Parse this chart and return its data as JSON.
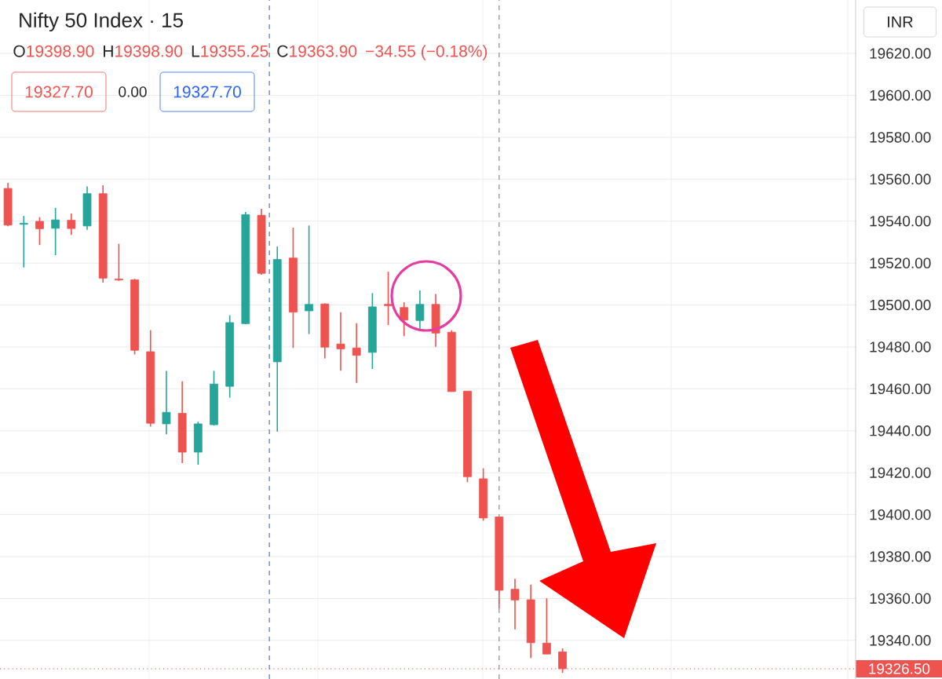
{
  "chart_data": {
    "type": "candlestick",
    "title": "Nifty 50 Index · 15",
    "categories": [
      null,
      null,
      null,
      null,
      null,
      null,
      null,
      null,
      null,
      null,
      null,
      null,
      null,
      null,
      null,
      null,
      null,
      null,
      null,
      null,
      null,
      null,
      null,
      null,
      null,
      null,
      null,
      null,
      null,
      null,
      null,
      null,
      null,
      null,
      null,
      null,
      null,
      null,
      null,
      null,
      null,
      null,
      null,
      null,
      null,
      null,
      null,
      null,
      null,
      null,
      null,
      null,
      null,
      null
    ],
    "ohlc": [
      [
        19555.6,
        19558.2,
        19537.6,
        19538.1
      ],
      [
        19538.5,
        19542.5,
        19517.9,
        19539.0
      ],
      [
        19539.9,
        19541.9,
        19528.6,
        19536.4
      ],
      [
        19536.6,
        19546.3,
        19523.8,
        19540.6
      ],
      [
        19540.4,
        19543.6,
        19533.4,
        19536.5
      ],
      [
        19537.7,
        19556.6,
        19535.9,
        19553.1
      ],
      [
        19553.1,
        19557.1,
        19510.7,
        19512.8
      ],
      [
        19512.4,
        19529.2,
        19511.5,
        19511.9
      ],
      [
        19512.0,
        19512.5,
        19476.4,
        19478.4
      ],
      [
        19477.7,
        19488.0,
        19442.0,
        19443.6
      ],
      [
        19443.3,
        19468.6,
        19438.3,
        19448.8
      ],
      [
        19448.3,
        19463.6,
        19424.6,
        19429.8
      ],
      [
        19429.8,
        19444.3,
        19423.8,
        19443.3
      ],
      [
        19442.9,
        19468.6,
        19442.5,
        19462.3
      ],
      [
        19461.2,
        19495.1,
        19455.8,
        19491.6
      ],
      [
        19491.1,
        19544.4,
        19490.8,
        19543.1
      ],
      [
        19542.8,
        19545.9,
        19514.4,
        19515.1
      ],
      [
        19472.9,
        19527.9,
        19439.6,
        19521.7
      ],
      [
        19522.4,
        19536.9,
        19479.5,
        19496.6
      ],
      [
        19497.2,
        19537.9,
        19486.1,
        19500.3
      ],
      [
        19500.5,
        19500.8,
        19474.5,
        19479.9
      ],
      [
        19481.4,
        19496.6,
        19468.7,
        19479.1
      ],
      [
        19479.5,
        19491.3,
        19462.9,
        19476.0
      ],
      [
        19477.4,
        19505.7,
        19469.5,
        19499.1
      ],
      [
        19500.3,
        19515.9,
        19490.4,
        19499.7
      ],
      [
        19498.8,
        19501.3,
        19485.1,
        19492.8
      ],
      [
        19492.6,
        19506.9,
        19488.5,
        19500.3
      ],
      [
        19500.3,
        19505.3,
        19480.1,
        19486.6
      ],
      [
        19487.0,
        19488.0,
        19458.7,
        19458.7
      ],
      [
        19458.9,
        19458.9,
        19415.5,
        19418.1
      ],
      [
        19417.1,
        19422.1,
        19397.1,
        19398.4
      ],
      [
        19398.9,
        19398.9,
        19355.25,
        19363.9
      ],
      [
        19364.4,
        19369.4,
        19345.3,
        19359.3
      ],
      [
        19359.4,
        19366.6,
        19331.6,
        19338.9
      ],
      [
        19338.7,
        19360.1,
        19333.5,
        19333.5
      ],
      [
        19334.5,
        19336.2,
        19324.5,
        19326.5
      ],
      null,
      null,
      null,
      null,
      null,
      null,
      null,
      null,
      null,
      null,
      null,
      null,
      null,
      null,
      null,
      null,
      null,
      null
    ],
    "colors": [
      "#ef5350",
      "#26a69a",
      "#ef5350",
      "#26a69a",
      "#ef5350",
      "#26a69a",
      "#ef5350",
      "#ef5350",
      "#ef5350",
      "#ef5350",
      "#26a69a",
      "#ef5350",
      "#26a69a",
      "#26a69a",
      "#26a69a",
      "#26a69a",
      "#ef5350",
      "#26a69a",
      "#ef5350",
      "#26a69a",
      "#ef5350",
      "#ef5350",
      "#ef5350",
      "#26a69a",
      "#ef5350",
      "#ef5350",
      "#26a69a",
      "#ef5350",
      "#ef5350",
      "#ef5350",
      "#ef5350",
      "#ef5350",
      "#ef5350",
      "#ef5350",
      "#ef5350",
      "#ef5350",
      null,
      null,
      null,
      null,
      null,
      null,
      null,
      null,
      null,
      null,
      null,
      null,
      null,
      null,
      null,
      null,
      null,
      null
    ],
    "ylim": [
      19321.6,
      19645.5
    ],
    "yticks": [
      {
        "value": 19340,
        "label": "19340.00"
      },
      {
        "value": 19360,
        "label": "19360.00"
      },
      {
        "value": 19380,
        "label": "19380.00"
      },
      {
        "value": 19400,
        "label": "19400.00"
      },
      {
        "value": 19420,
        "label": "19420.00"
      },
      {
        "value": 19440,
        "label": "19440.00"
      },
      {
        "value": 19460,
        "label": "19460.00"
      },
      {
        "value": 19480,
        "label": "19480.00"
      },
      {
        "value": 19500,
        "label": "19500.00"
      },
      {
        "value": 19520,
        "label": "19520.00"
      },
      {
        "value": 19540,
        "label": "19540.00"
      },
      {
        "value": 19560,
        "label": "19560.00"
      },
      {
        "value": 19580,
        "label": "19580.00"
      },
      {
        "value": 19600,
        "label": "19600.00"
      },
      {
        "value": 19620,
        "label": "19620.00"
      }
    ],
    "ref_lines": [
      {
        "axis": "y",
        "value": 19326.5,
        "label": "19326.50",
        "color": "#ef5350",
        "line_style": "dotted"
      }
    ],
    "grid": true,
    "tick_labels": "y",
    "annotations": [
      "O",
      "19398.90",
      "H",
      "19398.90",
      "L",
      "19355.25",
      "C",
      "19363.90",
      "−34.55 (−0.18%)",
      "19327.70",
      "0.00",
      "19327.70",
      "INR"
    ]
  }
}
